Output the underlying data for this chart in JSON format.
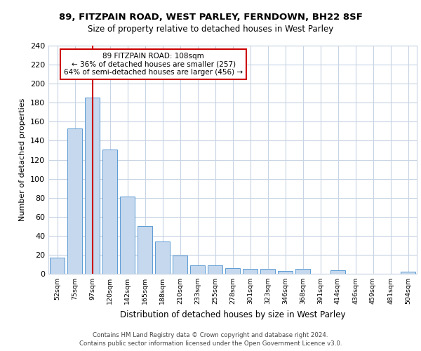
{
  "title_line1": "89, FITZPAIN ROAD, WEST PARLEY, FERNDOWN, BH22 8SF",
  "title_line2": "Size of property relative to detached houses in West Parley",
  "xlabel": "Distribution of detached houses by size in West Parley",
  "ylabel": "Number of detached properties",
  "categories": [
    "52sqm",
    "75sqm",
    "97sqm",
    "120sqm",
    "142sqm",
    "165sqm",
    "188sqm",
    "210sqm",
    "233sqm",
    "255sqm",
    "278sqm",
    "301sqm",
    "323sqm",
    "346sqm",
    "368sqm",
    "391sqm",
    "414sqm",
    "436sqm",
    "459sqm",
    "481sqm",
    "504sqm"
  ],
  "values": [
    17,
    153,
    185,
    131,
    81,
    50,
    34,
    19,
    9,
    9,
    6,
    5,
    5,
    3,
    5,
    0,
    4,
    0,
    0,
    0,
    2
  ],
  "bar_color": "#c5d8ed",
  "bar_edge_color": "#5b9bd5",
  "property_line_x": 2,
  "annotation_text": "89 FITZPAIN ROAD: 108sqm\n← 36% of detached houses are smaller (257)\n64% of semi-detached houses are larger (456) →",
  "annotation_box_color": "#ffffff",
  "annotation_box_edge": "#cc0000",
  "vline_color": "#cc0000",
  "grid_color": "#c8d4e3",
  "background_color": "#ffffff",
  "footer_line1": "Contains HM Land Registry data © Crown copyright and database right 2024.",
  "footer_line2": "Contains public sector information licensed under the Open Government Licence v3.0.",
  "ylim": [
    0,
    240
  ],
  "yticks": [
    0,
    20,
    40,
    60,
    80,
    100,
    120,
    140,
    160,
    180,
    200,
    220,
    240
  ]
}
